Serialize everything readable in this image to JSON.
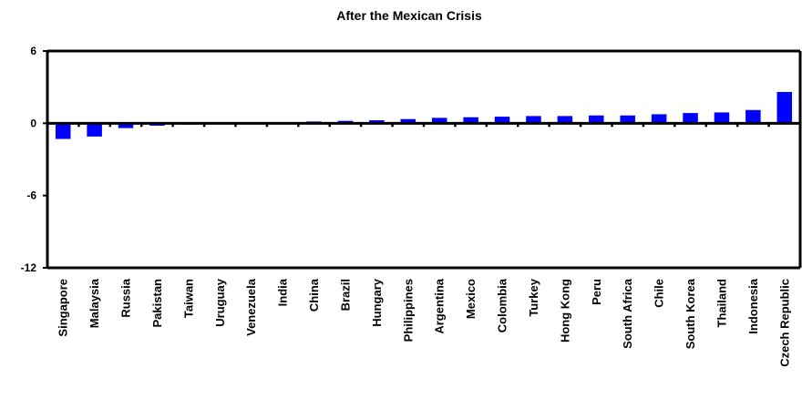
{
  "chart_data": {
    "type": "bar",
    "title": "After the Mexican Crisis",
    "xlabel": "",
    "ylabel": "",
    "ylim": [
      -12,
      6
    ],
    "yticks": [
      "6",
      "0",
      "-6",
      "-12"
    ],
    "ytick_values": [
      6,
      0,
      -6,
      -12
    ],
    "grid": false,
    "bar_color": "#0000FF",
    "axis_color": "#000000",
    "categories": [
      "Singapore",
      "Malaysia",
      "Russia",
      "Pakistan",
      "Taiwan",
      "Uruguay",
      "Venezuela",
      "India",
      "China",
      "Brazil",
      "Hungary",
      "Philippines",
      "Argentina",
      "Mexico",
      "Colombia",
      "Turkey",
      "Hong Kong",
      "Peru",
      "South Africa",
      "Chile",
      "South Korea",
      "Thailand",
      "Indonesia",
      "Czech Republic"
    ],
    "values": [
      -1.3,
      -1.1,
      -0.4,
      -0.2,
      -0.1,
      0.05,
      0.05,
      0.1,
      0.15,
      0.2,
      0.25,
      0.35,
      0.45,
      0.5,
      0.55,
      0.6,
      0.6,
      0.65,
      0.65,
      0.75,
      0.85,
      0.9,
      1.1,
      2.6
    ]
  }
}
